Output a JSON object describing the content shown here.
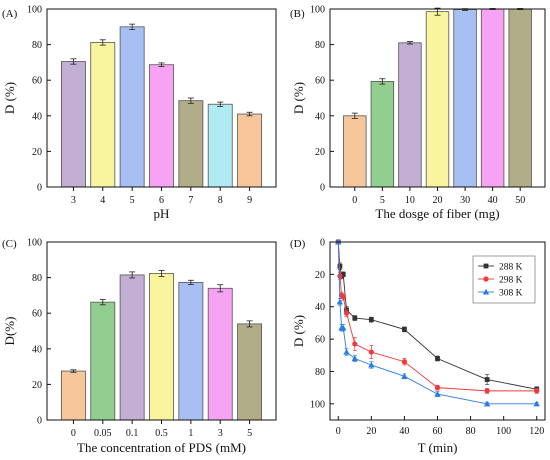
{
  "chart_data": [
    {
      "panel": "(A)",
      "type": "bar",
      "xlabel": "pH",
      "ylabel": "D (%)",
      "ylim": [
        0,
        100
      ],
      "yticks": [
        0,
        20,
        40,
        60,
        80,
        100
      ],
      "categories": [
        "3",
        "4",
        "5",
        "6",
        "7",
        "8",
        "9"
      ],
      "values": [
        70.5,
        81.2,
        90.0,
        68.7,
        48.5,
        46.5,
        41.0
      ],
      "errors": [
        1.5,
        1.5,
        1.5,
        1.0,
        1.5,
        1.2,
        1.0
      ],
      "colors": [
        "#c3aed4",
        "#f9f59e",
        "#a7bff2",
        "#f6a3f3",
        "#b2ad89",
        "#b0ebf1",
        "#f8c69b"
      ]
    },
    {
      "panel": "(B)",
      "type": "bar",
      "xlabel": "The dosge of fiber (mg)",
      "ylabel": "D (%)",
      "ylim": [
        0,
        100
      ],
      "yticks": [
        0,
        20,
        40,
        60,
        80,
        100
      ],
      "categories": [
        "0",
        "5",
        "10",
        "20",
        "30",
        "40",
        "50"
      ],
      "values": [
        40.0,
        59.3,
        81.0,
        98.5,
        99.7,
        100.0,
        100.0
      ],
      "errors": [
        1.5,
        1.5,
        0.7,
        2.0,
        0.5,
        0.3,
        0.3
      ],
      "colors": [
        "#f8c69b",
        "#92ce90",
        "#c3aed4",
        "#f9f59e",
        "#a7bff2",
        "#f6a3f3",
        "#b2ad89"
      ]
    },
    {
      "panel": "(C)",
      "type": "bar",
      "xlabel": "The concentration of PDS (mM)",
      "ylabel": "D(%)",
      "ylim": [
        0,
        100
      ],
      "yticks": [
        0,
        20,
        40,
        60,
        80,
        100
      ],
      "categories": [
        "0",
        "0.05",
        "0.1",
        "0.5",
        "1",
        "3",
        "5"
      ],
      "values": [
        27.5,
        66.2,
        81.5,
        82.3,
        77.3,
        74.0,
        54.0
      ],
      "errors": [
        0.7,
        1.5,
        1.7,
        1.7,
        1.2,
        2.0,
        1.7
      ],
      "colors": [
        "#f8c69b",
        "#92ce90",
        "#c3aed4",
        "#f9f59e",
        "#a7bff2",
        "#f6a3f3",
        "#b2ad89"
      ]
    },
    {
      "panel": "(D)",
      "type": "line",
      "xlabel": "T (min)",
      "ylabel": "D (%)",
      "xlim": [
        -5,
        125
      ],
      "ylim": [
        0,
        110
      ],
      "y_inverted": true,
      "xticks": [
        0,
        20,
        40,
        60,
        80,
        100,
        120
      ],
      "yticks": [
        0,
        20,
        40,
        60,
        80,
        100
      ],
      "legend_position": "top-right",
      "series": [
        {
          "name": "288 K",
          "color": "#333333",
          "marker": "square",
          "x": [
            0,
            1,
            2,
            3,
            5,
            10,
            20,
            40,
            60,
            90,
            120
          ],
          "y": [
            0,
            15,
            21,
            20,
            42,
            47,
            48,
            54,
            72,
            85,
            91
          ],
          "errors": [
            0,
            2,
            1.5,
            1.5,
            2,
            1.5,
            1.5,
            1.5,
            1.5,
            3,
            1.5
          ]
        },
        {
          "name": "298 K",
          "color": "#ee3b3b",
          "marker": "circle",
          "x": [
            0,
            1,
            2,
            3,
            5,
            10,
            20,
            40,
            60,
            90,
            120
          ],
          "y": [
            0,
            21,
            33,
            34,
            44,
            63,
            68,
            74,
            90,
            92,
            92
          ],
          "errors": [
            0,
            2,
            2,
            2,
            2,
            4,
            4,
            2,
            1.5,
            1.5,
            1.5
          ]
        },
        {
          "name": "308 K",
          "color": "#2c7de0",
          "marker": "triangle",
          "x": [
            0,
            1,
            2,
            3,
            5,
            10,
            20,
            40,
            60,
            90,
            120
          ],
          "y": [
            0,
            37,
            53,
            53,
            68,
            72,
            76,
            83,
            94,
            100,
            100
          ],
          "errors": [
            0,
            2,
            2,
            2,
            2,
            2,
            2,
            1.5,
            1.5,
            1,
            1
          ]
        }
      ]
    }
  ]
}
